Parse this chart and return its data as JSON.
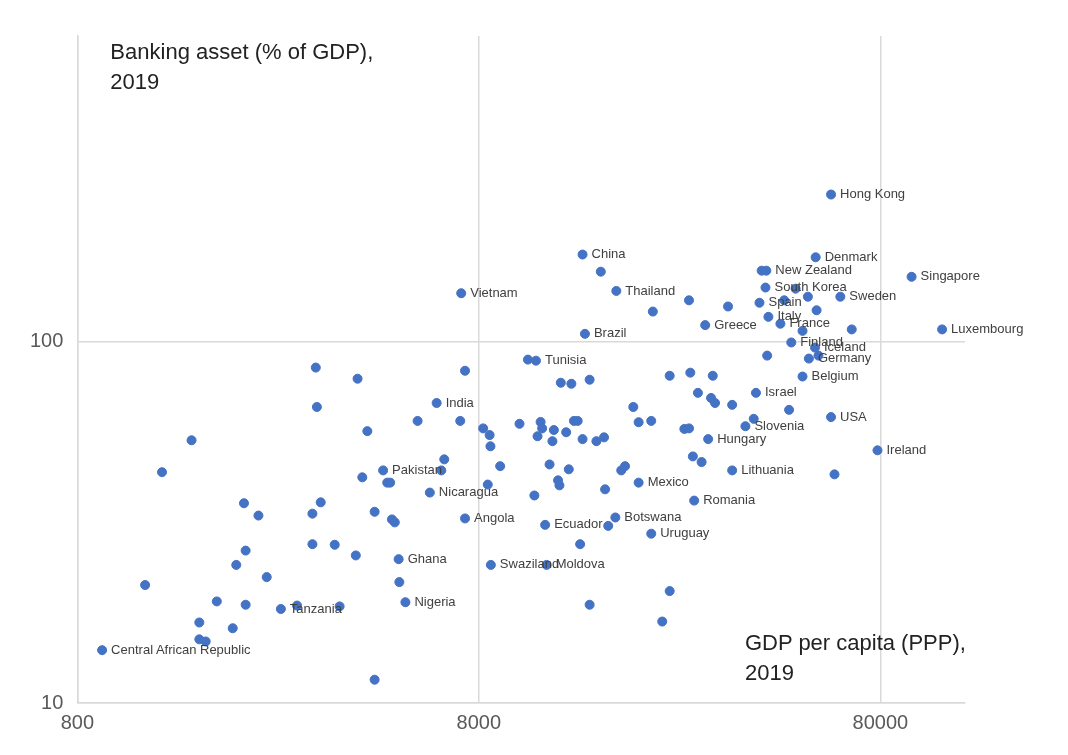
{
  "chart_data": {
    "type": "scatter",
    "xlabel": "GDP per capita (PPP), 2019",
    "ylabel": "Banking asset (% of GDP), 2019",
    "log": "xy",
    "grid": true,
    "legend": false,
    "marker": "circle",
    "color": "#4472c4",
    "xlim": [
      800,
      130000
    ],
    "ylim": [
      10,
      700
    ],
    "xticks": [
      800,
      8000,
      80000
    ],
    "yticks": [
      10,
      100
    ],
    "x": [
      60300,
      14500,
      55200,
      41600,
      40500,
      95700,
      7230,
      17600,
      41400,
      63600,
      40000,
      42100,
      29300,
      45100,
      114000,
      14700,
      48000,
      55000,
      53100,
      11100,
      51200,
      6280,
      39200,
      60300,
      36900,
      29800,
      78700,
      4620,
      34200,
      20000,
      6040,
      27500,
      7390,
      17500,
      11700,
      21500,
      5050,
      8570,
      11800,
      5250,
      2570,
      922,
      3140,
      3990,
      3160,
      4220,
      1540,
      1300,
      4100,
      4730,
      2080,
      3230,
      2260,
      3080,
      4400,
      3080,
      3500,
      3950,
      2100,
      1990,
      2370,
      1180,
      1780,
      2100,
      2820,
      3600,
      1610,
      1950,
      1610,
      1670,
      4400,
      10600,
      16100,
      26700,
      21700,
      7390,
      12800,
      13600,
      15100,
      23900,
      26900,
      5630,
      7190,
      8200,
      8510,
      8550,
      10100,
      11400,
      11500,
      11200,
      12300,
      12200,
      13200,
      13800,
      14100,
      14500,
      15700,
      16400,
      19400,
      20000,
      21500,
      26000,
      26700,
      27300,
      28700,
      6560,
      6450,
      4810,
      12000,
      13400,
      9040,
      18100,
      18500,
      8420,
      11000,
      12600,
      12700,
      16500,
      4860,
      4940,
      16800,
      14300,
      5070,
      15100,
      23900,
      22900,
      49200,
      52800,
      33400,
      46100,
      55500,
      51200,
      67900,
      56100,
      41800,
      30600,
      28100,
      30300,
      31000,
      34200,
      47400,
      38700,
      61500
    ],
    "values": [
      255,
      174,
      171,
      157,
      157,
      151,
      136,
      138,
      141,
      133,
      128,
      117,
      111,
      112,
      108,
      105,
      99.4,
      96.2,
      89.7,
      88.5,
      80,
      67.6,
      72.1,
      61.8,
      58.3,
      53.7,
      50,
      44,
      44,
      40.7,
      38.2,
      36.3,
      32.4,
      32.6,
      31.1,
      29.4,
      25,
      24.1,
      24.1,
      19,
      18.2,
      14,
      84.7,
      78.9,
      65.9,
      56.5,
      53.3,
      43.5,
      42.1,
      40.7,
      35.7,
      35.9,
      33,
      33.4,
      33.8,
      27.5,
      27.4,
      25.6,
      26.4,
      24.1,
      22.3,
      21.2,
      19.1,
      18.7,
      18.6,
      18.5,
      16.7,
      16.1,
      15,
      14.8,
      11.6,
      89.1,
      156,
      130,
      121,
      83,
      76.9,
      76.4,
      78.4,
      80.4,
      82,
      60.3,
      60.3,
      57.5,
      55.1,
      51.3,
      59.2,
      59.9,
      57.5,
      54.7,
      56.9,
      53,
      56.1,
      60.3,
      60.3,
      53.7,
      53,
      54.3,
      65.9,
      59.8,
      60.3,
      57.3,
      57.5,
      48.1,
      46.4,
      47.2,
      44,
      40.7,
      45.7,
      44.3,
      45.2,
      44,
      45.2,
      40.2,
      37.5,
      41.3,
      40,
      39,
      32.2,
      31.6,
      30.9,
      27.5,
      21.6,
      18.7,
      20.4,
      16.8,
      140,
      133,
      125,
      130,
      122,
      107,
      108,
      91.4,
      91.4,
      80.4,
      72.1,
      69.8,
      67.6,
      66.8,
      64.7,
      61.1,
      42.9
    ],
    "value_labels": [
      "Hong Kong",
      "China",
      "Denmark",
      "New Zealand",
      null,
      "Singapore",
      "Vietnam",
      "Thailand",
      "South Korea",
      "Sweden",
      "Spain",
      "Italy",
      "Greece",
      "France",
      "Luxembourg",
      "Brazil",
      "Finland",
      "Iceland",
      "Germany",
      "Tunisia",
      "Belgium",
      "India",
      "Israel",
      "USA",
      "Slovenia",
      "Hungary",
      "Ireland",
      "Pakistan",
      "Lithuania",
      "Mexico",
      "Nicaragua",
      "Romania",
      "Angola",
      "Botswana",
      "Ecuador",
      "Uruguay",
      "Ghana",
      "Swaziland",
      "Moldova",
      "Nigeria",
      "Tanzania",
      "Central African Republic",
      null,
      null,
      null,
      null,
      null,
      null,
      null,
      null,
      null,
      null,
      null,
      null,
      null,
      null,
      null,
      null,
      null,
      null,
      null,
      null,
      null,
      null,
      null,
      null,
      null,
      null,
      null,
      null,
      null,
      null,
      null,
      null,
      null,
      null,
      null,
      null,
      null,
      null,
      null,
      null,
      null,
      null,
      null,
      null,
      null,
      null,
      null,
      null,
      null,
      null,
      null,
      null,
      null,
      null,
      null,
      null,
      null,
      null,
      null,
      null,
      null,
      null,
      null,
      null,
      null,
      null,
      null,
      null,
      null,
      null,
      null,
      null,
      null,
      null,
      null,
      null,
      null,
      null,
      null,
      null,
      null,
      null,
      null,
      null,
      null,
      null,
      null,
      null,
      null,
      null,
      null,
      null,
      null,
      null,
      null,
      null,
      null,
      null,
      null,
      null,
      null
    ]
  }
}
